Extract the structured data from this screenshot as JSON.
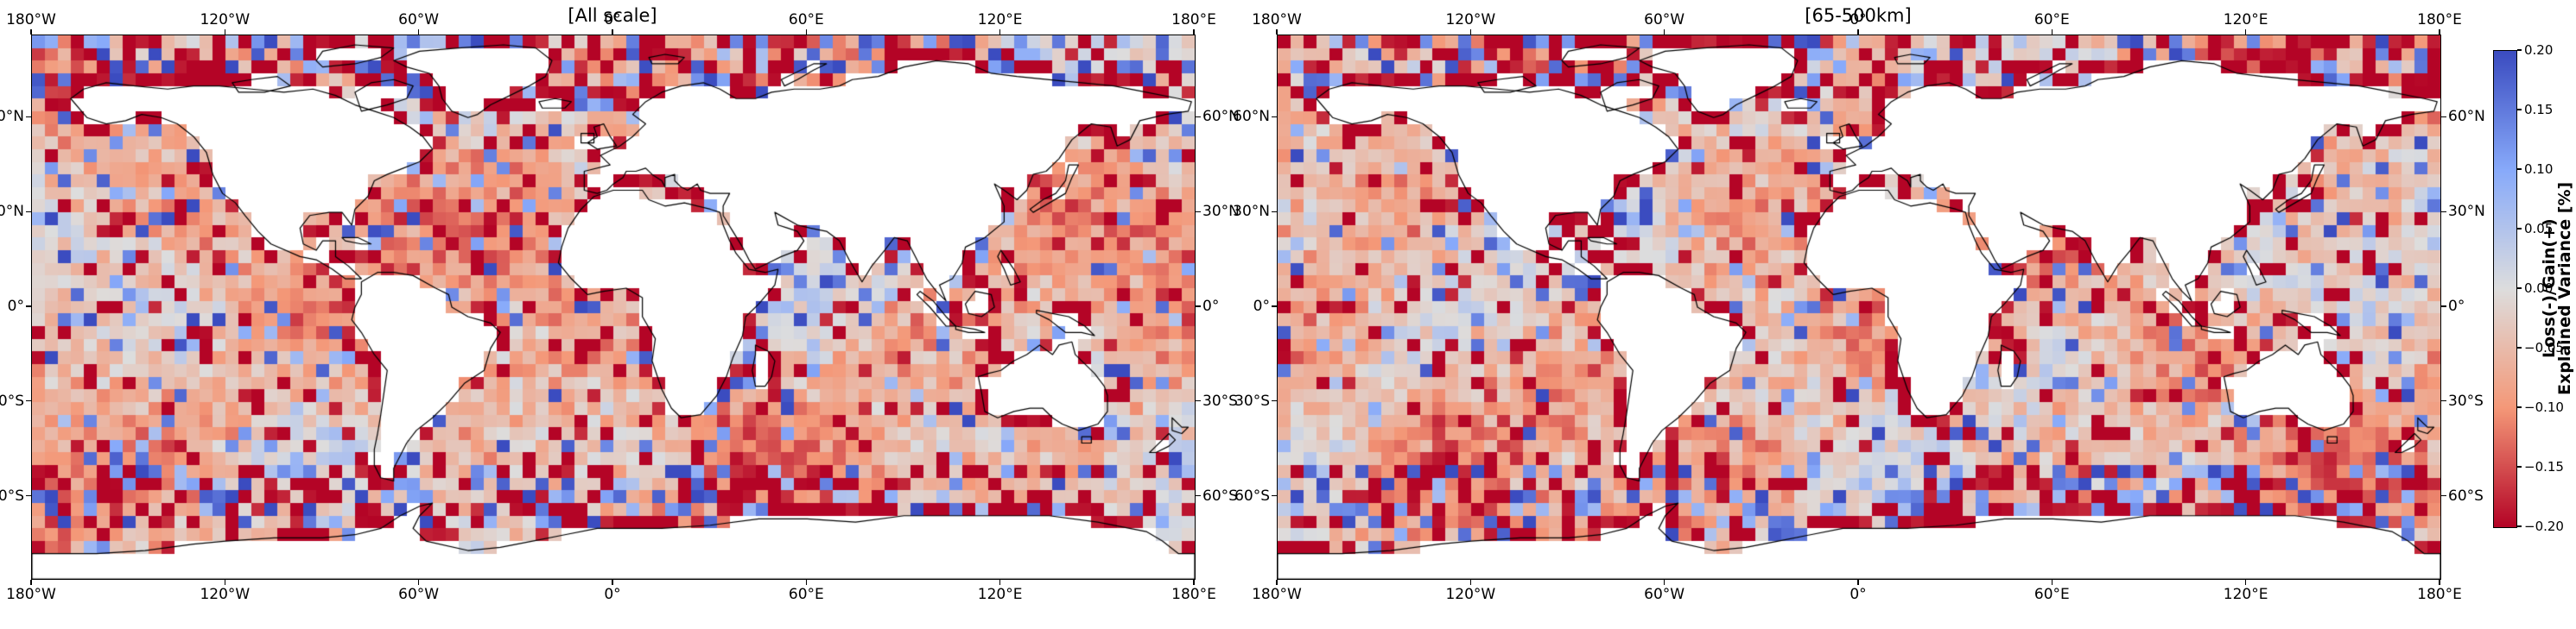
{
  "figure": {
    "background": "#ffffff"
  },
  "chart_data": {
    "type": "heatmap",
    "description": "Two equirectangular world maps of gridded (≈4°) ocean cells showing loss (red) / gain (blue) of explained variance; land is white with black coastlines; shared diverging colorbar.",
    "panels": [
      {
        "title": "[All scale]"
      },
      {
        "title": "[65-500km]"
      }
    ],
    "x_ticks": [
      "180°W",
      "120°W",
      "60°W",
      "0°",
      "60°E",
      "120°E",
      "180°E"
    ],
    "x_tick_values": [
      -180,
      -120,
      -60,
      0,
      60,
      120,
      180
    ],
    "y_ticks": [
      "60°N",
      "30°N",
      "0°",
      "30°S",
      "60°S"
    ],
    "y_tick_values": [
      60,
      30,
      0,
      -30,
      -60
    ],
    "lon_range": [
      -180,
      180
    ],
    "lat_range": [
      -86,
      86
    ],
    "cell_size_deg": 4,
    "grid_on": false,
    "colorbar": {
      "label": "Loss(-)/Gain(+)\nExplained Variance [%]",
      "ticks": [
        "0.20",
        "0.15",
        "0.10",
        "0.05",
        "0.00",
        "−0.05",
        "−0.10",
        "−0.15",
        "−0.20"
      ],
      "tick_values": [
        0.2,
        0.15,
        0.1,
        0.05,
        0.0,
        -0.05,
        -0.1,
        -0.15,
        -0.2
      ],
      "vmin": -0.2,
      "vmax": 0.2,
      "colormap": "coolwarm reversed (negative=red, positive=blue)",
      "color_negative_extreme": "#b40426",
      "color_zero": "#dddddd",
      "color_positive_extreme": "#3b4cc0"
    }
  }
}
